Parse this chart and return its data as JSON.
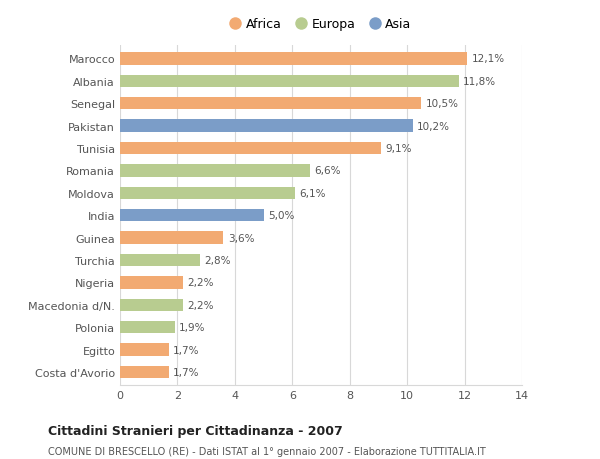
{
  "categories": [
    "Costa d'Avorio",
    "Egitto",
    "Polonia",
    "Macedonia d/N.",
    "Nigeria",
    "Turchia",
    "Guinea",
    "India",
    "Moldova",
    "Romania",
    "Tunisia",
    "Pakistan",
    "Senegal",
    "Albania",
    "Marocco"
  ],
  "values": [
    1.7,
    1.7,
    1.9,
    2.2,
    2.2,
    2.8,
    3.6,
    5.0,
    6.1,
    6.6,
    9.1,
    10.2,
    10.5,
    11.8,
    12.1
  ],
  "labels": [
    "1,7%",
    "1,7%",
    "1,9%",
    "2,2%",
    "2,2%",
    "2,8%",
    "3,6%",
    "5,0%",
    "6,1%",
    "6,6%",
    "9,1%",
    "10,2%",
    "10,5%",
    "11,8%",
    "12,1%"
  ],
  "continents": [
    "Africa",
    "Africa",
    "Europa",
    "Europa",
    "Africa",
    "Europa",
    "Africa",
    "Asia",
    "Europa",
    "Europa",
    "Africa",
    "Asia",
    "Africa",
    "Europa",
    "Africa"
  ],
  "colors": {
    "Africa": "#F2AA72",
    "Europa": "#B8CC90",
    "Asia": "#7B9DC8"
  },
  "legend": [
    {
      "label": "Africa",
      "color": "#F2AA72"
    },
    {
      "label": "Europa",
      "color": "#B8CC90"
    },
    {
      "label": "Asia",
      "color": "#7B9DC8"
    }
  ],
  "xlim": [
    0,
    14
  ],
  "xticks": [
    0,
    2,
    4,
    6,
    8,
    10,
    12,
    14
  ],
  "title": "Cittadini Stranieri per Cittadinanza - 2007",
  "subtitle": "COMUNE DI BRESCELLO (RE) - Dati ISTAT al 1° gennaio 2007 - Elaborazione TUTTITALIA.IT",
  "background_color": "#ffffff",
  "grid_color": "#d8d8d8",
  "bar_height": 0.55
}
